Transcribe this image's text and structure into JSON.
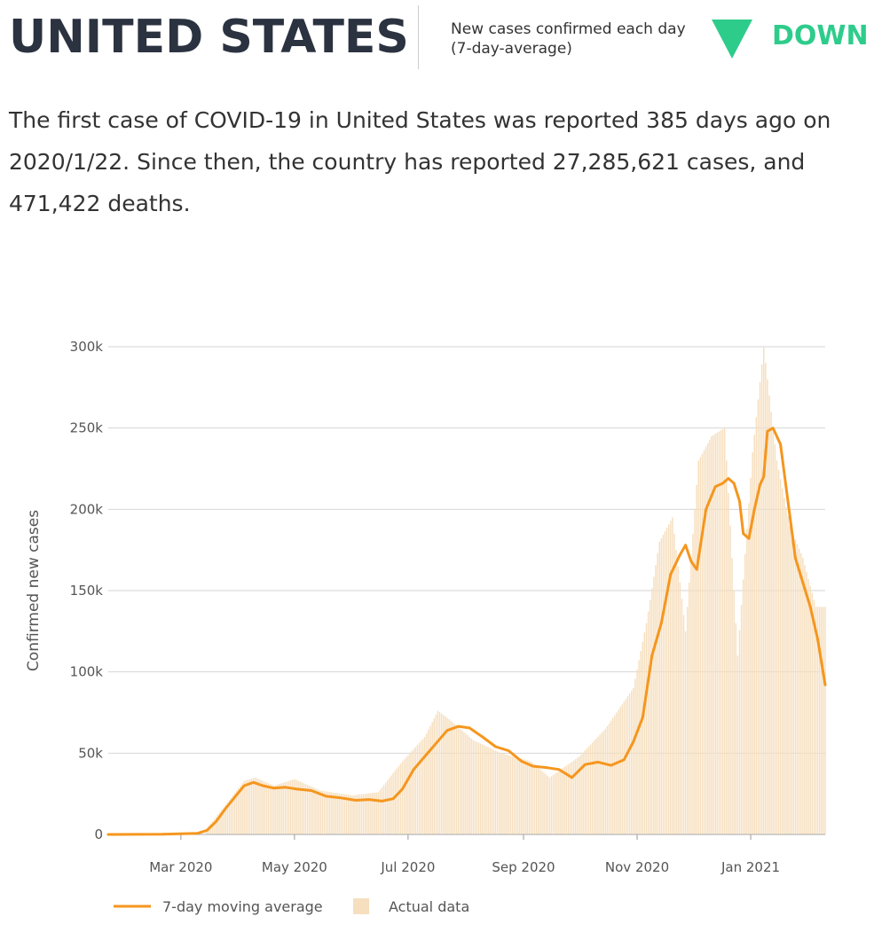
{
  "header": {
    "country": "UNITED STATES",
    "trend_label": "New cases confirmed each day (7-day-average)",
    "trend_status": "DOWN",
    "trend_icon": "down-triangle-icon",
    "trend_color": "#2ecc8b"
  },
  "summary": "The first case of COVID-19 in United States was reported 385 days ago on 2020/1/22. Since then, the country has reported 27,285,621 cases, and 471,422 deaths.",
  "chart_data": {
    "type": "line",
    "ylabel": "Confirmed new cases",
    "xlabel": "",
    "ylim": [
      0,
      300000
    ],
    "yticks": [
      0,
      50000,
      100000,
      150000,
      200000,
      250000,
      300000
    ],
    "ytick_labels": [
      "0",
      "50k",
      "100k",
      "150k",
      "200k",
      "250k",
      "300k"
    ],
    "xrange": [
      "2020-01-22",
      "2021-02-10"
    ],
    "xticks": [
      {
        "date": "2020-03-01",
        "label": "Mar 2020"
      },
      {
        "date": "2020-05-01",
        "label": "May 2020"
      },
      {
        "date": "2020-07-01",
        "label": "Jul 2020"
      },
      {
        "date": "2020-09-01",
        "label": "Sep 2020"
      },
      {
        "date": "2020-11-01",
        "label": "Nov 2020"
      },
      {
        "date": "2021-01-01",
        "label": "Jan 2021"
      }
    ],
    "grid": true,
    "legend_position": "bottom-left",
    "series": [
      {
        "name": "7-day moving average",
        "kind": "line",
        "color": "#f5961e",
        "x": [
          "2020-01-22",
          "2020-02-20",
          "2020-03-10",
          "2020-03-15",
          "2020-03-20",
          "2020-03-25",
          "2020-03-30",
          "2020-04-04",
          "2020-04-09",
          "2020-04-14",
          "2020-04-20",
          "2020-04-26",
          "2020-05-02",
          "2020-05-10",
          "2020-05-18",
          "2020-05-26",
          "2020-06-03",
          "2020-06-10",
          "2020-06-17",
          "2020-06-23",
          "2020-06-28",
          "2020-07-04",
          "2020-07-10",
          "2020-07-16",
          "2020-07-22",
          "2020-07-28",
          "2020-08-03",
          "2020-08-10",
          "2020-08-17",
          "2020-08-24",
          "2020-08-31",
          "2020-09-06",
          "2020-09-10",
          "2020-09-14",
          "2020-09-20",
          "2020-09-27",
          "2020-10-04",
          "2020-10-11",
          "2020-10-18",
          "2020-10-25",
          "2020-10-30",
          "2020-11-04",
          "2020-11-09",
          "2020-11-14",
          "2020-11-19",
          "2020-11-24",
          "2020-11-27",
          "2020-11-30",
          "2020-12-03",
          "2020-12-08",
          "2020-12-13",
          "2020-12-17",
          "2020-12-20",
          "2020-12-23",
          "2020-12-26",
          "2020-12-28",
          "2020-12-31",
          "2021-01-03",
          "2021-01-06",
          "2021-01-08",
          "2021-01-10",
          "2021-01-13",
          "2021-01-17",
          "2021-01-21",
          "2021-01-25",
          "2021-01-29",
          "2021-02-02",
          "2021-02-06",
          "2021-02-10"
        ],
        "y": [
          0,
          100,
          700,
          2500,
          8000,
          16000,
          23000,
          30000,
          32000,
          30000,
          28500,
          29000,
          28000,
          27000,
          23500,
          22500,
          21000,
          21500,
          20500,
          22000,
          28000,
          40000,
          48000,
          56000,
          64000,
          66500,
          65500,
          60000,
          54000,
          51500,
          45000,
          42000,
          41500,
          41000,
          40000,
          35000,
          43000,
          44500,
          42500,
          46000,
          57000,
          72000,
          110000,
          130000,
          160000,
          172000,
          178000,
          168000,
          163000,
          200000,
          214000,
          216000,
          219000,
          216000,
          205000,
          185000,
          182000,
          200000,
          215000,
          220000,
          248000,
          250000,
          240000,
          205000,
          170000,
          155000,
          140000,
          120000,
          92000
        ]
      },
      {
        "name": "Actual data",
        "kind": "bar",
        "color": "#f6dfbf",
        "x": [
          "2020-03-15",
          "2020-03-25",
          "2020-04-04",
          "2020-04-10",
          "2020-04-20",
          "2020-05-01",
          "2020-05-15",
          "2020-06-01",
          "2020-06-15",
          "2020-06-28",
          "2020-07-10",
          "2020-07-17",
          "2020-07-24",
          "2020-08-05",
          "2020-08-20",
          "2020-09-05",
          "2020-09-15",
          "2020-10-01",
          "2020-10-15",
          "2020-10-30",
          "2020-11-06",
          "2020-11-13",
          "2020-11-20",
          "2020-11-27",
          "2020-12-04",
          "2020-12-11",
          "2020-12-18",
          "2020-12-25",
          "2021-01-02",
          "2021-01-08",
          "2021-01-15",
          "2021-01-22",
          "2021-01-29",
          "2021-02-05"
        ],
        "y": [
          4000,
          18000,
          33000,
          35000,
          30000,
          34000,
          27000,
          24000,
          26000,
          45000,
          60000,
          76000,
          70000,
          58000,
          50000,
          45000,
          35000,
          48000,
          65000,
          90000,
          130000,
          180000,
          195000,
          125000,
          230000,
          245000,
          250000,
          110000,
          235000,
          300000,
          230000,
          190000,
          170000,
          140000
        ]
      }
    ]
  }
}
